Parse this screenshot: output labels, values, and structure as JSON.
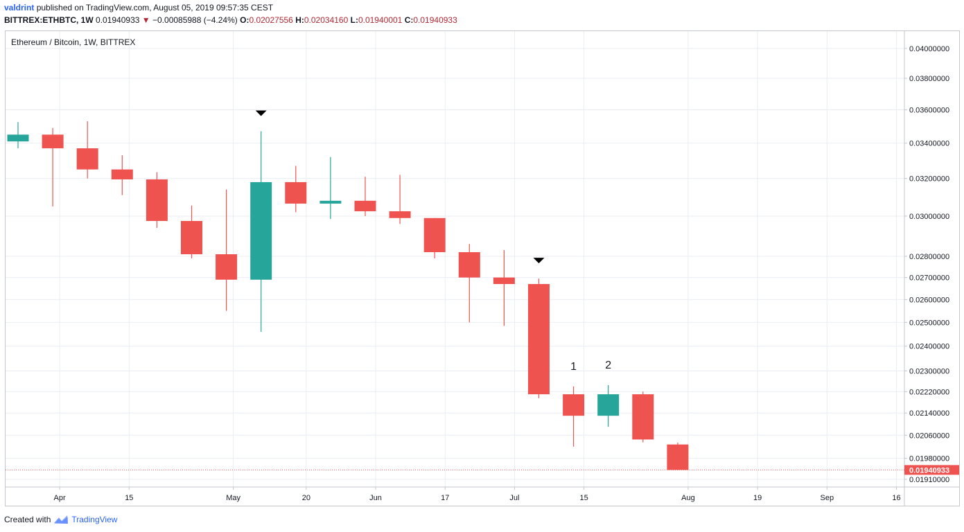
{
  "header": {
    "user": "valdrint",
    "published_text": "published on TradingView.com, August 05, 2019 09:57:35 CEST",
    "symbol": "BITTREX:ETHBTC, 1W",
    "last": "0.01940933",
    "change_arrow": "▼",
    "change": "−0.00085988 (−4.24%)",
    "open_label": "O:",
    "open": "0.02027556",
    "high_label": "H:",
    "high": "0.02034160",
    "low_label": "L:",
    "low": "0.01940001",
    "close_label": "C:",
    "close": "0.01940933"
  },
  "footer": {
    "created_with": "Created with",
    "brand": "TradingView"
  },
  "colors": {
    "up": "#26a69a",
    "down": "#ef5350",
    "grid": "#e9edf3",
    "axis_text": "#131722",
    "price_line": "#ef5350",
    "link": "#2962ff"
  },
  "chart_data": {
    "type": "candlestick",
    "title": "Ethereum / Bitcoin, 1W, BITTREX",
    "scale": "log",
    "ylim": [
      0.01885,
      0.0412
    ],
    "y_ticks": [
      "0.04000000",
      "0.03800000",
      "0.03600000",
      "0.03400000",
      "0.03200000",
      "0.03000000",
      "0.02800000",
      "0.02700000",
      "0.02600000",
      "0.02500000",
      "0.02400000",
      "0.02300000",
      "0.02220000",
      "0.02140000",
      "0.02060000",
      "0.01980000",
      "0.01910000"
    ],
    "x_labels": [
      {
        "label": "Apr",
        "index": 1.2
      },
      {
        "label": "15",
        "index": 3.2
      },
      {
        "label": "May",
        "index": 6.2
      },
      {
        "label": "20",
        "index": 8.3
      },
      {
        "label": "Jun",
        "index": 10.3
      },
      {
        "label": "17",
        "index": 12.3
      },
      {
        "label": "Jul",
        "index": 14.3
      },
      {
        "label": "15",
        "index": 16.3
      },
      {
        "label": "Aug",
        "index": 19.3
      },
      {
        "label": "19",
        "index": 21.3
      },
      {
        "label": "Sep",
        "index": 23.3
      },
      {
        "label": "16",
        "index": 25.3
      }
    ],
    "candles": [
      {
        "week": "2019-03-18",
        "o": 0.0341,
        "h": 0.03525,
        "l": 0.0337,
        "c": 0.0345
      },
      {
        "week": "2019-03-25",
        "o": 0.0345,
        "h": 0.0349,
        "l": 0.0305,
        "c": 0.0337
      },
      {
        "week": "2019-04-01",
        "o": 0.0337,
        "h": 0.0353,
        "l": 0.032,
        "c": 0.0325
      },
      {
        "week": "2019-04-08",
        "o": 0.0325,
        "h": 0.0333,
        "l": 0.0311,
        "c": 0.03195
      },
      {
        "week": "2019-04-15",
        "o": 0.03195,
        "h": 0.03235,
        "l": 0.0294,
        "c": 0.02975
      },
      {
        "week": "2019-04-22",
        "o": 0.02975,
        "h": 0.03055,
        "l": 0.0279,
        "c": 0.0281
      },
      {
        "week": "2019-04-29",
        "o": 0.0281,
        "h": 0.0314,
        "l": 0.0255,
        "c": 0.0269
      },
      {
        "week": "2019-05-06",
        "o": 0.0269,
        "h": 0.0347,
        "l": 0.0246,
        "c": 0.0318
      },
      {
        "week": "2019-05-13",
        "o": 0.0318,
        "h": 0.0327,
        "l": 0.0302,
        "c": 0.03065
      },
      {
        "week": "2019-05-20",
        "o": 0.03065,
        "h": 0.0332,
        "l": 0.02985,
        "c": 0.0308
      },
      {
        "week": "2019-05-27",
        "o": 0.0308,
        "h": 0.0321,
        "l": 0.03,
        "c": 0.03025
      },
      {
        "week": "2019-06-03",
        "o": 0.03025,
        "h": 0.0322,
        "l": 0.0296,
        "c": 0.0299
      },
      {
        "week": "2019-06-10",
        "o": 0.0299,
        "h": 0.0299,
        "l": 0.0279,
        "c": 0.0282
      },
      {
        "week": "2019-06-17",
        "o": 0.0282,
        "h": 0.0286,
        "l": 0.025,
        "c": 0.027
      },
      {
        "week": "2019-06-24",
        "o": 0.027,
        "h": 0.0283,
        "l": 0.02485,
        "c": 0.0267
      },
      {
        "week": "2019-07-01",
        "o": 0.0267,
        "h": 0.02695,
        "l": 0.02195,
        "c": 0.0221
      },
      {
        "week": "2019-07-08",
        "o": 0.0221,
        "h": 0.0224,
        "l": 0.0202,
        "c": 0.0213
      },
      {
        "week": "2019-07-15",
        "o": 0.0213,
        "h": 0.02245,
        "l": 0.0209,
        "c": 0.0221
      },
      {
        "week": "2019-07-22",
        "o": 0.0221,
        "h": 0.0222,
        "l": 0.02035,
        "c": 0.02045
      },
      {
        "week": "2019-07-29",
        "o": 0.02027556,
        "h": 0.0203416,
        "l": 0.01940001,
        "c": 0.01940933
      }
    ],
    "markers": [
      {
        "type": "arrow-down",
        "index": 7
      },
      {
        "type": "arrow-down",
        "index": 15
      },
      {
        "type": "label",
        "text": "1",
        "index": 16
      },
      {
        "type": "label",
        "text": "2",
        "index": 17
      }
    ],
    "last_price": {
      "value": 0.01940933,
      "label": "0.01940933"
    }
  }
}
